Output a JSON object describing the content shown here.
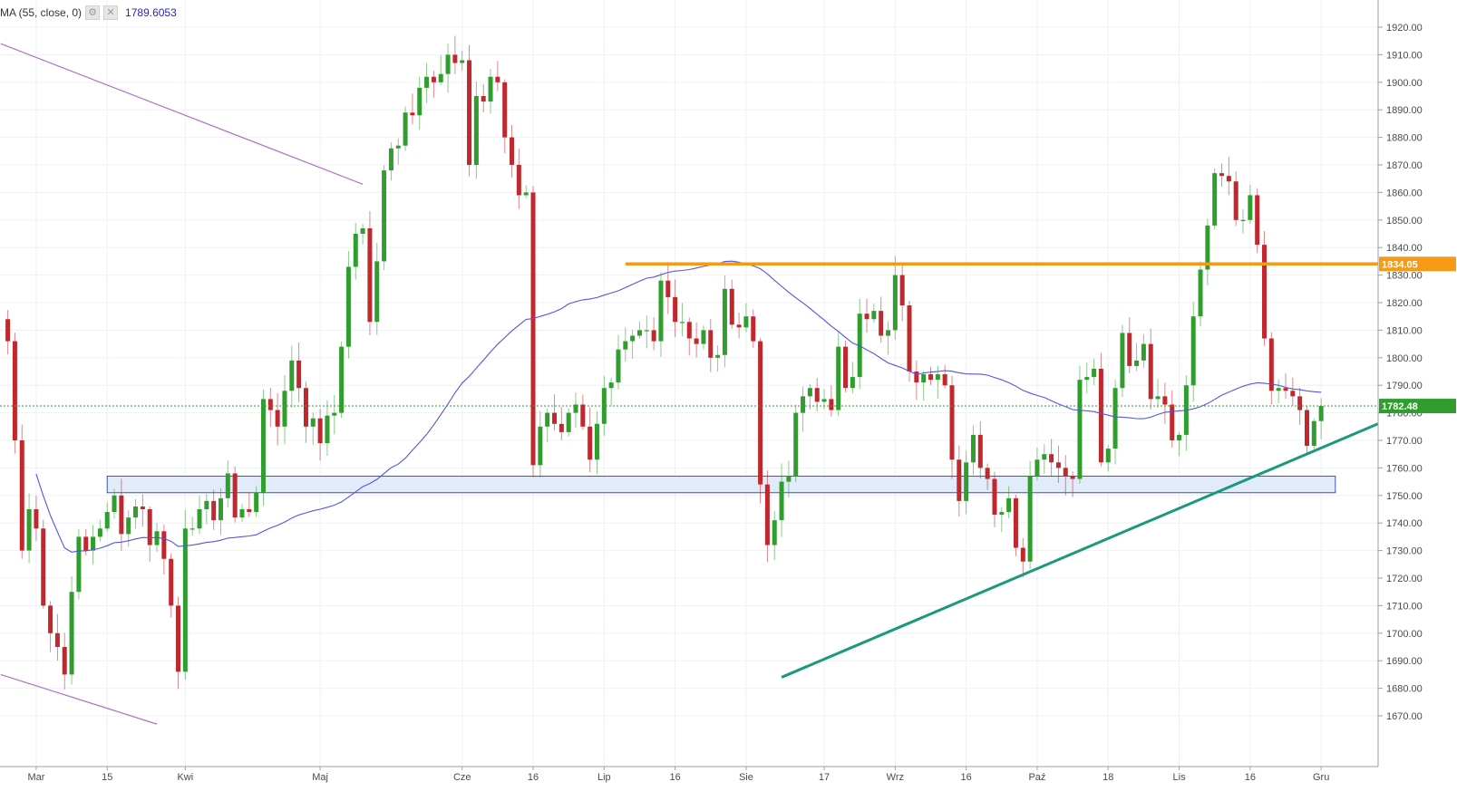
{
  "indicator_legend": {
    "label": "MA (55, close, 0)",
    "settings_icon": "gear-icon",
    "close_icon": "close-icon",
    "value": "1789.6053"
  },
  "colors": {
    "up": "#2f9e2f",
    "down": "#c0282d",
    "ma": "#5555e0",
    "resistance": "#f59a15",
    "trendline": "#1a9a7a",
    "channel": "#b070c8",
    "support_zone_fill": "#dce8f8",
    "support_zone_stroke": "#3a55b4",
    "current_price": "#2f9e2f",
    "grid": "#eef0f4"
  },
  "chart_data": {
    "type": "candlestick",
    "ylim": [
      1665,
      1925
    ],
    "y_ticks": [
      1670,
      1680,
      1690,
      1700,
      1710,
      1720,
      1730,
      1740,
      1750,
      1760,
      1770,
      1780,
      1790,
      1800,
      1810,
      1820,
      1830,
      1840,
      1850,
      1860,
      1870,
      1880,
      1890,
      1900,
      1910,
      1920
    ],
    "x_ticks": [
      {
        "label": "Mar",
        "i": 4
      },
      {
        "label": "15",
        "i": 14
      },
      {
        "label": "Kwi",
        "i": 25
      },
      {
        "label": "Maj",
        "i": 44
      },
      {
        "label": "Cze",
        "i": 64
      },
      {
        "label": "16",
        "i": 74
      },
      {
        "label": "Lip",
        "i": 84
      },
      {
        "label": "16",
        "i": 94
      },
      {
        "label": "Sie",
        "i": 104
      },
      {
        "label": "17",
        "i": 115
      },
      {
        "label": "Wrz",
        "i": 125
      },
      {
        "label": "16",
        "i": 135
      },
      {
        "label": "Paź",
        "i": 145
      },
      {
        "label": "18",
        "i": 155
      },
      {
        "label": "Lis",
        "i": 165
      },
      {
        "label": "16",
        "i": 175
      },
      {
        "label": "Gru",
        "i": 185
      }
    ],
    "closes": [
      1806,
      1770,
      1730,
      1745,
      1738,
      1710,
      1700,
      1695,
      1685,
      1715,
      1735,
      1730,
      1735,
      1738,
      1744,
      1750,
      1736,
      1742,
      1746,
      1745,
      1732,
      1737,
      1727,
      1710,
      1686,
      1738,
      1738,
      1745,
      1748,
      1741,
      1749,
      1758,
      1742,
      1745,
      1744,
      1751,
      1785,
      1781,
      1775,
      1788,
      1799,
      1789,
      1775,
      1778,
      1769,
      1779,
      1780,
      1804,
      1833,
      1845,
      1847,
      1813,
      1835,
      1868,
      1876,
      1877,
      1889,
      1888,
      1898,
      1902,
      1900,
      1903,
      1910,
      1907,
      1908,
      1870,
      1895,
      1893,
      1902,
      1900,
      1880,
      1870,
      1859,
      1860,
      1761,
      1775,
      1780,
      1776,
      1773,
      1780,
      1783,
      1775,
      1763,
      1776,
      1789,
      1791,
      1803,
      1806,
      1808,
      1810,
      1810,
      1806,
      1828,
      1822,
      1813,
      1813,
      1807,
      1805,
      1810,
      1800,
      1801,
      1825,
      1812,
      1811,
      1815,
      1806,
      1754,
      1732,
      1741,
      1755,
      1757,
      1780,
      1786,
      1789,
      1784,
      1785,
      1781,
      1804,
      1789,
      1793,
      1816,
      1814,
      1817,
      1808,
      1810,
      1830,
      1819,
      1795,
      1791,
      1794,
      1792,
      1794,
      1790,
      1763,
      1748,
      1762,
      1772,
      1760,
      1756,
      1743,
      1744,
      1749,
      1731,
      1726,
      1757,
      1763,
      1765,
      1762,
      1760,
      1757,
      1756,
      1792,
      1793,
      1796,
      1762,
      1767,
      1789,
      1809,
      1797,
      1799,
      1805,
      1785,
      1786,
      1783,
      1770,
      1772,
      1790,
      1815,
      1832,
      1848,
      1867,
      1866,
      1864,
      1850,
      1850,
      1859,
      1841,
      1807,
      1788,
      1789,
      1788,
      1786,
      1781,
      1768,
      1777,
      1782.48
    ],
    "current_price_label": "1782.48",
    "resistance": {
      "label": "1834.05",
      "value": 1834.05,
      "from_i": 87
    },
    "support_zone": {
      "low": 1751,
      "high": 1757,
      "from_i": 14,
      "to_i": 187
    },
    "trendline": {
      "from": {
        "i": 109,
        "y": 1684
      },
      "to": {
        "i": 193,
        "y": 1776
      }
    },
    "channel_lines": [
      {
        "from": {
          "i": -1,
          "y": 1914
        },
        "to": {
          "i": 50,
          "y": 1863
        }
      },
      {
        "from": {
          "i": -1,
          "y": 1685
        },
        "to": {
          "i": 21,
          "y": 1667
        }
      }
    ]
  }
}
